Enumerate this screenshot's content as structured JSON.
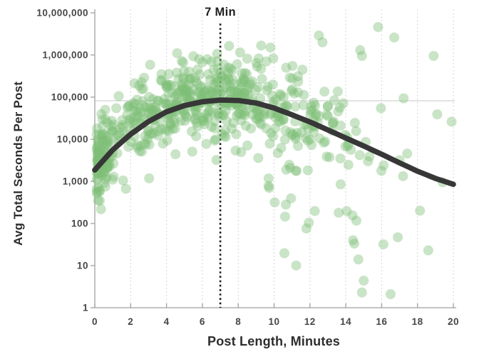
{
  "chart_data": {
    "type": "scatter",
    "xlabel": "Post Length, Minutes",
    "ylabel": "Avg Total Seconds Per Post",
    "x_scale": "linear",
    "y_scale": "log10",
    "xlim": [
      0,
      20
    ],
    "ylim": [
      1,
      10000000
    ],
    "grid": "vertical-dotted",
    "x_ticks": [
      0,
      2,
      4,
      6,
      8,
      10,
      12,
      14,
      16,
      18,
      20
    ],
    "y_ticks": [
      {
        "value": 10000000,
        "label": "10,000,000"
      },
      {
        "value": 1000000,
        "label": "1,000,000"
      },
      {
        "value": 100000,
        "label": "100,000"
      },
      {
        "value": 10000,
        "label": "10,000"
      },
      {
        "value": 1000,
        "label": "1,000"
      },
      {
        "value": 100,
        "label": "100"
      },
      {
        "value": 10,
        "label": "10"
      },
      {
        "value": 1,
        "label": "1"
      }
    ],
    "annotation": {
      "label": "7 Min",
      "x": 7,
      "line_style": "dotted"
    },
    "reference_line": {
      "value": 82000,
      "orientation": "horizontal"
    },
    "trend": {
      "x": [
        0,
        1,
        2,
        3,
        4,
        5,
        6,
        7,
        8,
        9,
        10,
        11,
        12,
        13,
        14,
        15,
        16,
        17,
        18,
        19,
        20
      ],
      "values": [
        1860,
        5600,
        13200,
        26300,
        44700,
        63100,
        77600,
        85100,
        83200,
        72400,
        55000,
        38000,
        25700,
        16600,
        10700,
        6900,
        4400,
        2750,
        1740,
        1175,
        850
      ]
    },
    "scatter": {
      "point_radius": 7,
      "color": "#7fbe76",
      "opacity": 0.42,
      "generator": {
        "seed": 1337,
        "count": 650,
        "x_mean": 6.1,
        "x_sd": 4.6,
        "near_zero_frac": 0.08,
        "near_zero_sd": 0.4,
        "noise_sd": 0.5,
        "noise_bias": 0.12,
        "low_outlier_rate": 0.17,
        "low_outlier_min": 0.4,
        "low_outlier_span": 2.6,
        "log_value_min": 0.3,
        "log_value_max": 6.35
      },
      "outlier_points": [
        [
          15.8,
          4600000
        ],
        [
          16.7,
          2600000
        ],
        [
          12.5,
          2900000
        ],
        [
          12.7,
          2000000
        ],
        [
          18.9,
          950000
        ],
        [
          14.8,
          1300000
        ],
        [
          14.9,
          950000
        ],
        [
          8.1,
          1150000
        ],
        [
          9.8,
          1500000
        ],
        [
          19.1,
          39000
        ],
        [
          19.9,
          26000
        ],
        [
          19.4,
          950
        ],
        [
          16.5,
          2.1
        ],
        [
          14.9,
          2.3
        ],
        [
          15.0,
          4.4
        ],
        [
          18.6,
          23
        ],
        [
          16.9,
          47
        ],
        [
          16.1,
          32
        ],
        [
          14.4,
          40
        ],
        [
          14.7,
          14
        ],
        [
          11.8,
          76
        ]
      ]
    },
    "colors": {
      "trend": "#373737",
      "annotation_line": "#1c1c1c",
      "grid": "#d6d6d6",
      "axis": "#a0a0a0",
      "reference": "#c8c8c8",
      "tick_label": "#474747",
      "title": "#2d2d2d",
      "point": "#7fbe76"
    }
  }
}
